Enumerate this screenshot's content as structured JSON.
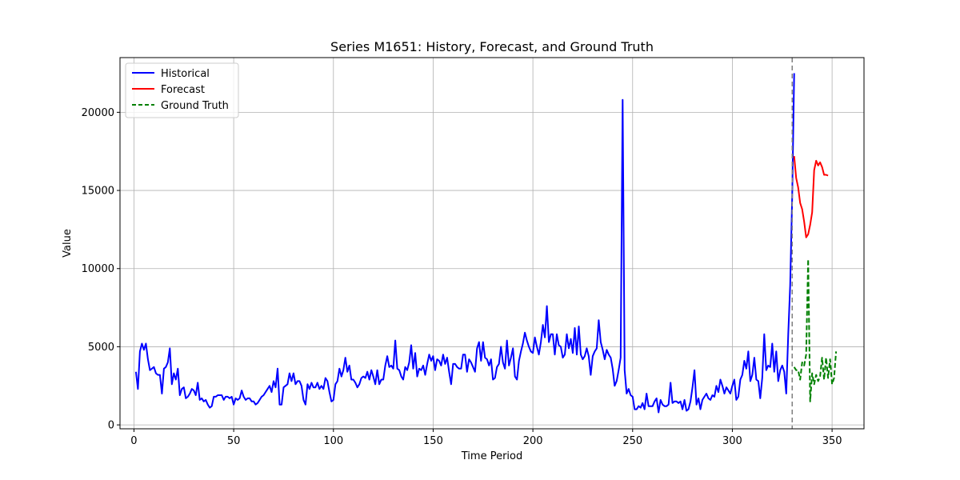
{
  "chart_data": {
    "type": "line",
    "title": "Series M1651: History, Forecast, and Ground Truth",
    "xlabel": "Time Period",
    "ylabel": "Value",
    "xlim": [
      -7,
      366
    ],
    "ylim": [
      -250,
      23500
    ],
    "xticks": [
      0,
      50,
      100,
      150,
      200,
      250,
      300,
      350
    ],
    "yticks": [
      0,
      5000,
      10000,
      15000,
      20000
    ],
    "grid": true,
    "legend_position": "top-left",
    "forecast_start": 330,
    "series": [
      {
        "name": "Historical",
        "color": "#0000ff",
        "style": "solid",
        "x_start": 1,
        "values": [
          3400,
          2300,
          4700,
          5200,
          4800,
          5200,
          4200,
          3500,
          3600,
          3700,
          3300,
          3200,
          3200,
          2000,
          3600,
          3700,
          4000,
          4900,
          2600,
          3300,
          2900,
          3600,
          1900,
          2300,
          2400,
          1700,
          1800,
          2000,
          2300,
          2200,
          1900,
          2700,
          1600,
          1700,
          1500,
          1600,
          1300,
          1100,
          1200,
          1800,
          1800,
          1900,
          1900,
          1900,
          1600,
          1800,
          1800,
          1700,
          1800,
          1300,
          1700,
          1600,
          1700,
          2200,
          1800,
          1600,
          1700,
          1700,
          1500,
          1500,
          1300,
          1400,
          1600,
          1800,
          1900,
          2100,
          2300,
          2500,
          2100,
          2800,
          2400,
          3600,
          1300,
          1300,
          2400,
          2500,
          2600,
          3300,
          2800,
          3300,
          2600,
          2800,
          2800,
          2500,
          1600,
          1300,
          2600,
          2300,
          2700,
          2400,
          2400,
          2700,
          2300,
          2500,
          2300,
          3000,
          2800,
          2100,
          1500,
          1600,
          2600,
          2800,
          3600,
          3100,
          3500,
          4300,
          3400,
          3800,
          2900,
          2900,
          2700,
          2400,
          2600,
          3000,
          3100,
          3000,
          3400,
          2900,
          3500,
          3100,
          2600,
          3500,
          2600,
          2900,
          2900,
          3800,
          4400,
          3700,
          3800,
          3600,
          5400,
          3600,
          3500,
          3100,
          2900,
          3700,
          3500,
          4000,
          5100,
          3600,
          4600,
          3100,
          3600,
          3500,
          3800,
          3200,
          3900,
          4500,
          4100,
          4400,
          3500,
          4200,
          4100,
          3800,
          4500,
          3900,
          4300,
          3400,
          2600,
          3900,
          3900,
          3700,
          3600,
          3600,
          4500,
          4500,
          3400,
          4200,
          4000,
          3700,
          3400,
          4900,
          5300,
          4100,
          5300,
          4300,
          4200,
          3800,
          4200,
          2900,
          3000,
          3700,
          3900,
          5000,
          4000,
          3600,
          5400,
          3800,
          4300,
          4900,
          3100,
          2900,
          4100,
          4700,
          5200,
          5900,
          5400,
          5000,
          4700,
          4600,
          5600,
          5000,
          4500,
          5300,
          6400,
          5600,
          7600,
          5300,
          5800,
          5800,
          4500,
          5800,
          5100,
          5000,
          4300,
          4500,
          5800,
          4900,
          5500,
          4600,
          6200,
          4500,
          6300,
          4500,
          4200,
          4400,
          4900,
          4400,
          3200,
          4400,
          4700,
          4900,
          6700,
          5300,
          4800,
          4200,
          4800,
          4500,
          4300,
          3600,
          2500,
          2800,
          3500,
          4300,
          20800,
          3500,
          2000,
          2300,
          1900,
          1800,
          1000,
          1000,
          1200,
          1100,
          1400,
          1000,
          2000,
          1200,
          1200,
          1200,
          1500,
          1700,
          800,
          1600,
          1300,
          1200,
          1200,
          1300,
          2700,
          1400,
          1500,
          1500,
          1400,
          1500,
          1000,
          1600,
          900,
          1000,
          1500,
          2400,
          3500,
          1300,
          1700,
          1000,
          1600,
          1800,
          2000,
          1700,
          1600,
          1900,
          1800,
          2500,
          2100,
          2900,
          2500,
          2000,
          2400,
          2200,
          2000,
          2500,
          2900,
          1600,
          1800,
          2900,
          3200,
          4100,
          3600,
          4700,
          2800,
          3200,
          4300,
          2900,
          2800,
          1700,
          3000,
          5800,
          3500,
          3800,
          3700,
          5200,
          3400,
          4700,
          2800,
          3500,
          3800,
          3400,
          2000,
          5800,
          8900,
          14500,
          22500
        ]
      },
      {
        "name": "Forecast",
        "color": "#ff0000",
        "style": "solid",
        "x_start": 331,
        "values": [
          17200,
          15800,
          15200,
          14200,
          13800,
          13000,
          12000,
          12200,
          12800,
          13600,
          16300,
          16900,
          16600,
          16800,
          16500,
          16000,
          16000,
          15950
        ]
      },
      {
        "name": "Ground Truth",
        "color": "#008000",
        "style": "dashed",
        "x_start": 331,
        "values": [
          3700,
          3500,
          3500,
          2900,
          4000,
          3800,
          4500,
          10600,
          1500,
          3300,
          2600,
          3200,
          2800,
          3100,
          4300,
          2900,
          4300,
          3000,
          4200,
          2600,
          3000,
          4700
        ]
      }
    ]
  }
}
